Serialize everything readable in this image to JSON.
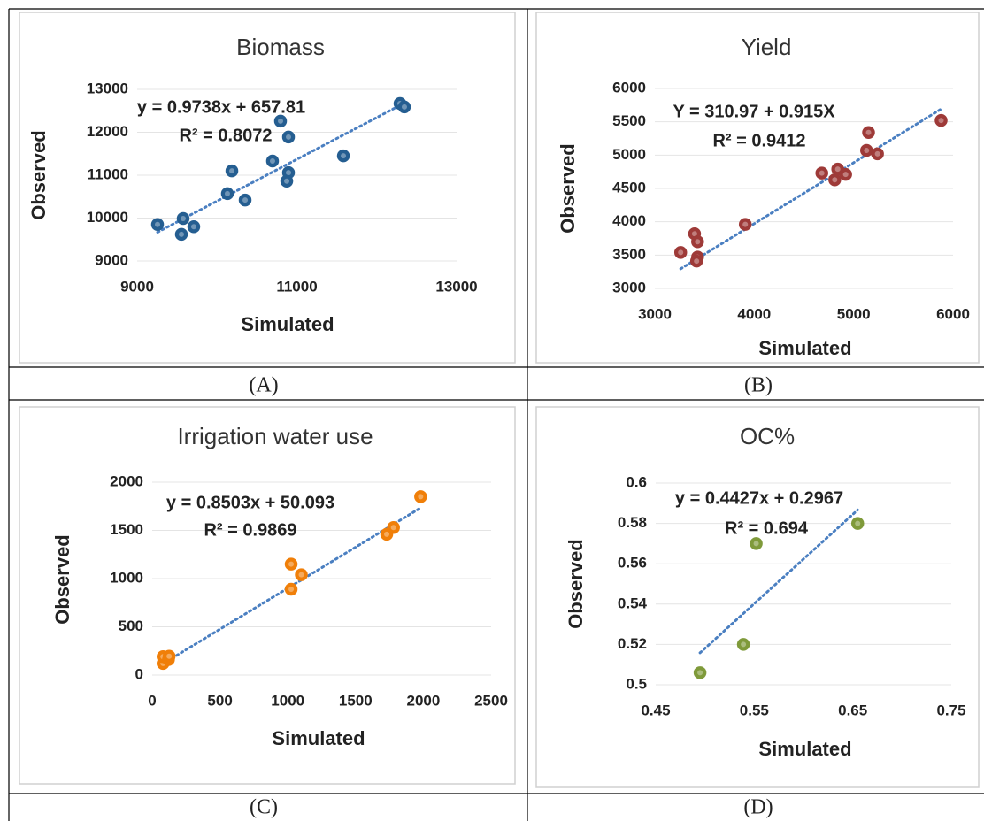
{
  "chart_data": [
    {
      "type": "scatter",
      "title": "Biomass",
      "xlabel": "Simulated",
      "ylabel": "Observed",
      "panel_label": "(A)",
      "color": "#255e91",
      "x": [
        9255,
        9554,
        9576,
        9709,
        10186,
        10130,
        10352,
        10695,
        10795,
        10895,
        10895,
        10873,
        11582,
        12291,
        12346
      ],
      "y": [
        9850,
        9620,
        9990,
        9800,
        11100,
        10570,
        10420,
        11330,
        12260,
        11890,
        11060,
        10860,
        11450,
        12670,
        12590
      ],
      "xlim": [
        9000,
        13000
      ],
      "ylim": [
        9000,
        13000
      ],
      "xticks": [
        9000,
        11000,
        13000
      ],
      "yticks": [
        9000,
        10000,
        11000,
        12000,
        13000
      ],
      "grid": true,
      "trendline": {
        "slope": 0.9738,
        "intercept": 657.81,
        "label": "y = 0.9738x + 657.81",
        "r2": 0.8072,
        "r2_label": "R² = 0.8072"
      }
    },
    {
      "type": "scatter",
      "title": "Yield",
      "xlabel": "Simulated",
      "ylabel": "Observed",
      "panel_label": "(B)",
      "color": "#9e3a38",
      "x": [
        3260,
        3400,
        3430,
        3430,
        3420,
        3910,
        4680,
        4810,
        4840,
        4920,
        5130,
        5150,
        5240,
        5880
      ],
      "y": [
        3540,
        3820,
        3700,
        3470,
        3410,
        3960,
        4730,
        4630,
        4790,
        4710,
        5070,
        5340,
        5020,
        5520
      ],
      "xlim": [
        3000,
        6000
      ],
      "ylim": [
        3000,
        6000
      ],
      "xticks": [
        3000,
        4000,
        5000,
        6000
      ],
      "yticks": [
        3000,
        3500,
        4000,
        4500,
        5000,
        5500,
        6000
      ],
      "grid": true,
      "trendline": {
        "slope": 0.915,
        "intercept": 310.97,
        "label": "Y = 310.97 + 0.915X",
        "r2": 0.9412,
        "r2_label": "R² = 0.9412"
      }
    },
    {
      "type": "scatter",
      "title": "Irrigation water use",
      "xlabel": "Simulated",
      "ylabel": "Observed",
      "panel_label": "(C)",
      "color": "#f07f09",
      "x": [
        80,
        80,
        120,
        125,
        1025,
        1100,
        1025,
        1730,
        1780,
        1980
      ],
      "y": [
        120,
        190,
        160,
        195,
        1150,
        1040,
        890,
        1460,
        1530,
        1850
      ],
      "xlim": [
        0,
        2500
      ],
      "ylim": [
        0,
        2000
      ],
      "xticks": [
        0,
        500,
        1000,
        1500,
        2000,
        2500
      ],
      "yticks": [
        0,
        500,
        1000,
        1500,
        2000
      ],
      "grid": true,
      "trendline": {
        "slope": 0.8503,
        "intercept": 50.093,
        "label": "y = 0.8503x + 50.093",
        "r2": 0.9869,
        "r2_label": "R² = 0.9869"
      }
    },
    {
      "type": "scatter",
      "title": "OC%",
      "xlabel": "Simulated",
      "ylabel": "Observed",
      "panel_label": "(D)",
      "color": "#7f9a3a",
      "x": [
        0.495,
        0.539,
        0.552,
        0.655
      ],
      "y": [
        0.506,
        0.52,
        0.57,
        0.58
      ],
      "xlim": [
        0.45,
        0.75
      ],
      "ylim": [
        0.5,
        0.6
      ],
      "xticks": [
        0.45,
        0.55,
        0.65,
        0.75
      ],
      "yticks": [
        0.5,
        0.52,
        0.54,
        0.56,
        0.58,
        0.6
      ],
      "grid": true,
      "trendline": {
        "slope": 0.4427,
        "intercept": 0.2967,
        "label": "y = 0.4427x + 0.2967",
        "r2": 0.694,
        "r2_label": "R² = 0.694"
      }
    }
  ]
}
